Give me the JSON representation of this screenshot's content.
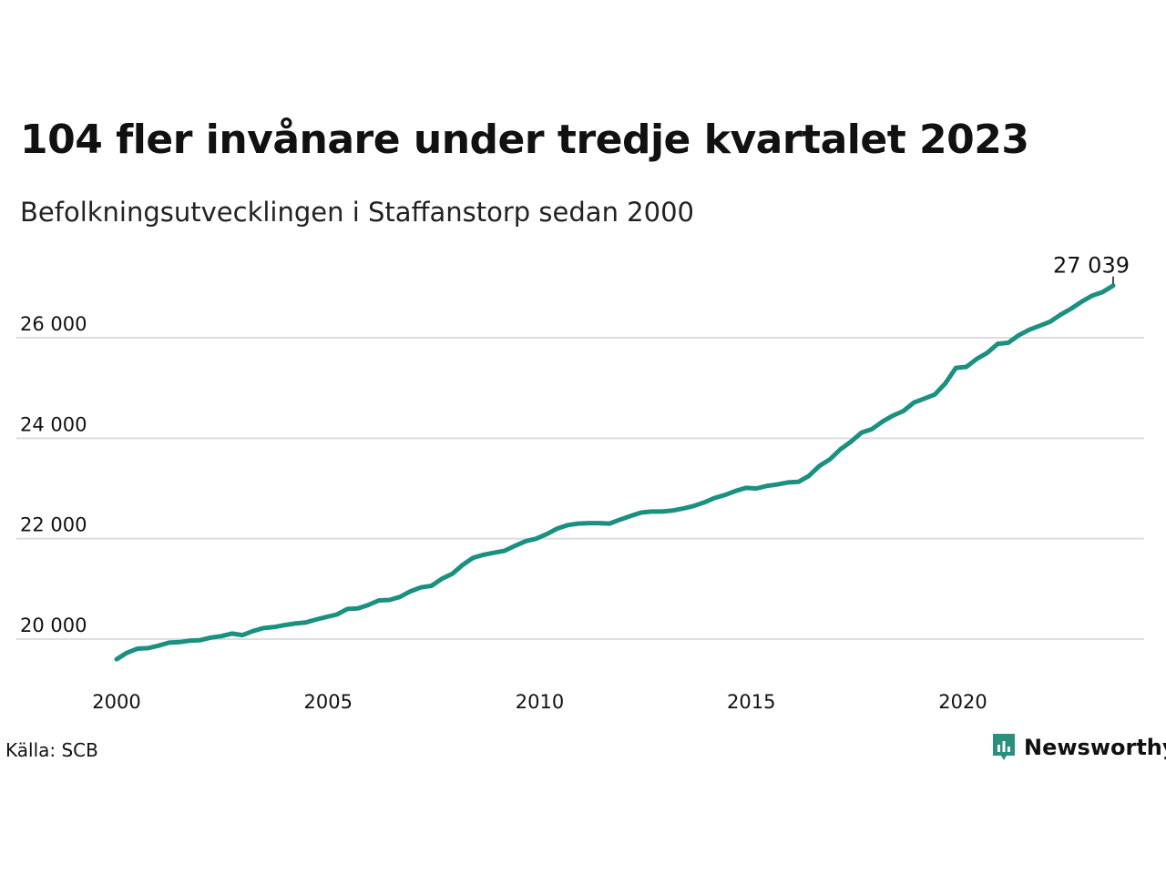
{
  "title": "104 fler invånare under tredje kvartalet 2023",
  "subtitle": "Befolkningsutvecklingen i Staffanstorp sedan 2000",
  "source": "Källa: SCB",
  "brand": {
    "name": "Newsworthy",
    "icon": "newsworthy-logo-icon",
    "color": "#2a8f7f"
  },
  "colors": {
    "line": "#1a9080",
    "grid": "#dcdde3",
    "text": "#111111"
  },
  "chart_data": {
    "type": "line",
    "title": "104 fler invånare under tredje kvartalet 2023",
    "subtitle": "Befolkningsutvecklingen i Staffanstorp sedan 2000",
    "xlabel": "",
    "ylabel": "",
    "xlim": [
      2000,
      2024.75
    ],
    "ylim": [
      19500,
      27000
    ],
    "x_ticks": [
      2000,
      2005,
      2010,
      2015,
      2020
    ],
    "x_tick_labels": [
      "2000",
      "2005",
      "2010",
      "2015",
      "2020"
    ],
    "y_ticks": [
      20000,
      22000,
      24000,
      26000
    ],
    "y_tick_labels": [
      "20 000",
      "22 000",
      "24 000",
      "26 000"
    ],
    "grid": "horizontal",
    "legend": "none",
    "end_label": "27 039",
    "series": [
      {
        "quarter_start_year": 2000,
        "values": [
          19600,
          19730,
          19810,
          19820,
          19870,
          19930,
          19940,
          19970,
          19980,
          20030,
          20060,
          20110,
          20080,
          20160,
          20220,
          20240,
          20280,
          20310,
          20330,
          20390,
          20440,
          20490,
          20600,
          20610,
          20680,
          20770,
          20780,
          20840,
          20950,
          21030,
          21060,
          21200,
          21300,
          21480,
          21620,
          21680,
          21720,
          21760,
          21860,
          21950,
          22000,
          22090,
          22200,
          22270,
          22300,
          22310,
          22310,
          22300,
          22380,
          22450,
          22520,
          22540,
          22540,
          22560,
          22600,
          22650,
          22720,
          22810,
          22870,
          22950,
          23010,
          23000,
          23050,
          23080,
          23120,
          23130,
          23250,
          23450,
          23580,
          23780,
          23930,
          24110,
          24180,
          24330,
          24450,
          24540,
          24710,
          24790,
          24870,
          25090,
          25400,
          25420,
          25580,
          25700,
          25880,
          25900,
          26050,
          26160,
          26240,
          26320,
          26460,
          26580,
          26720,
          26840,
          26910,
          27039
        ]
      }
    ]
  }
}
